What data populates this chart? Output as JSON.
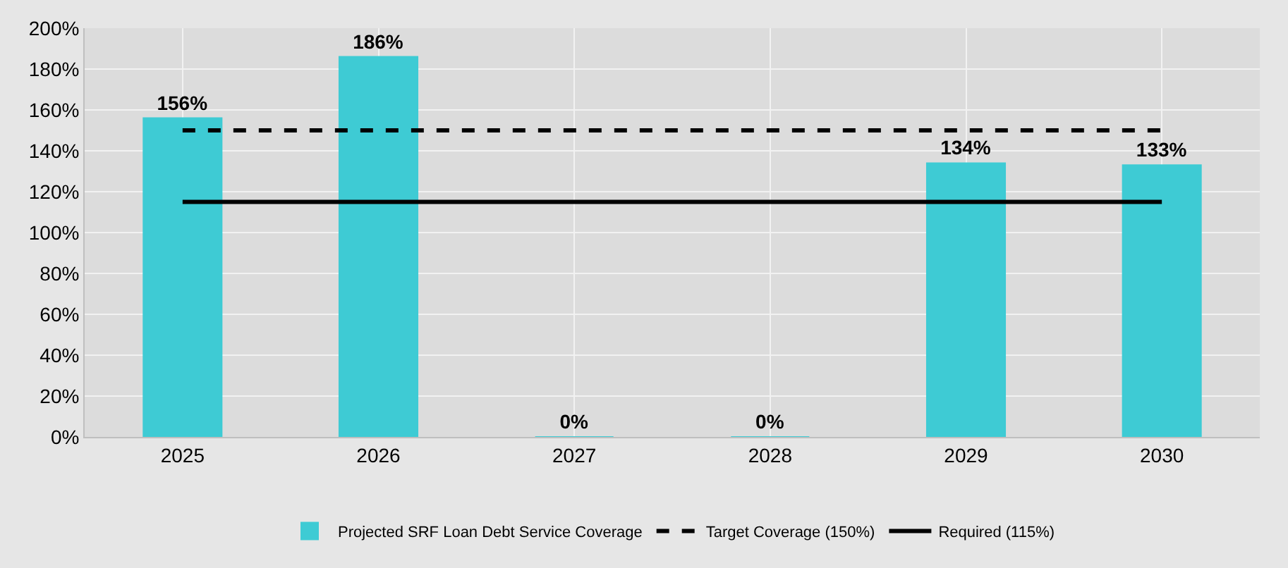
{
  "chart_data": {
    "type": "bar",
    "categories": [
      "2025",
      "2026",
      "2027",
      "2028",
      "2029",
      "2030"
    ],
    "series": [
      {
        "name": "Projected SRF Loan Debt Service Coverage",
        "color": "#3ecbd4",
        "values": [
          156,
          186,
          0,
          0,
          134,
          133
        ],
        "value_labels": [
          "156%",
          "186%",
          "0%",
          "0%",
          "134%",
          "133%"
        ]
      },
      {
        "name": "Target Coverage (150%)",
        "type": "line",
        "color": "#000000",
        "line_style": "dashed",
        "values": [
          150,
          150,
          150,
          150,
          150,
          150
        ]
      },
      {
        "name": "Required (115%)",
        "type": "line",
        "color": "#000000",
        "line_style": "solid",
        "values": [
          115,
          115,
          115,
          115,
          115,
          115
        ]
      }
    ],
    "ylim": [
      0,
      200
    ],
    "yticks": [
      {
        "value": 0,
        "label": "0%"
      },
      {
        "value": 20,
        "label": "20%"
      },
      {
        "value": 40,
        "label": "40%"
      },
      {
        "value": 60,
        "label": "60%"
      },
      {
        "value": 80,
        "label": "80%"
      },
      {
        "value": 100,
        "label": "100%"
      },
      {
        "value": 120,
        "label": "120%"
      },
      {
        "value": 140,
        "label": "140%"
      },
      {
        "value": 160,
        "label": "160%"
      },
      {
        "value": 180,
        "label": "180%"
      },
      {
        "value": 200,
        "label": "200%"
      }
    ],
    "grid": true,
    "legend": "bottom"
  }
}
